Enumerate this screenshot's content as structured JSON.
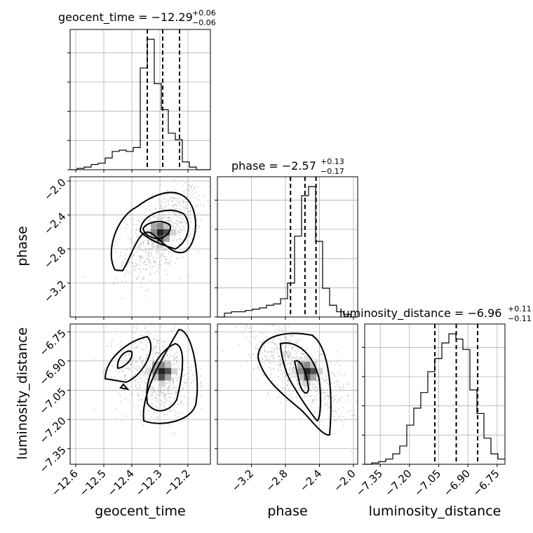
{
  "chart_data": {
    "type": "corner",
    "parameters": [
      {
        "name": "geocent_time",
        "title_prefix": "geocent_time = −12.29",
        "title_sup": "+0.06",
        "title_sub": "−0.06",
        "range": [
          -12.62,
          -12.12
        ],
        "ticks": [
          "−12.6",
          "−12.5",
          "−12.4",
          "−12.3",
          "−12.2"
        ],
        "tick_values": [
          -12.6,
          -12.5,
          -12.4,
          -12.3,
          -12.2
        ],
        "quantiles": [
          -12.345,
          -12.29,
          -12.23
        ],
        "hist": [
          0.0,
          0.01,
          0.02,
          0.04,
          0.05,
          0.09,
          0.14,
          0.15,
          0.14,
          0.17,
          0.78,
          1.0,
          0.66,
          0.46,
          0.28,
          0.23,
          0.06,
          0.02,
          0.0,
          0.0
        ]
      },
      {
        "name": "phase",
        "title_prefix": "phase = −2.57",
        "title_sup": "+0.13",
        "title_sub": "−0.17",
        "range": [
          -3.6,
          -1.95
        ],
        "ticks": [
          "−3.2",
          "−2.8",
          "−2.4",
          "−2.0"
        ],
        "tick_values": [
          -3.2,
          -2.8,
          -2.4,
          -2.0
        ],
        "quantiles": [
          -2.74,
          -2.57,
          -2.44
        ],
        "hist": [
          0.0,
          0.03,
          0.04,
          0.04,
          0.05,
          0.06,
          0.07,
          0.09,
          0.1,
          0.14,
          0.26,
          0.62,
          0.93,
          1.0,
          0.58,
          0.22,
          0.09,
          0.04,
          0.02,
          0.0
        ]
      },
      {
        "name": "luminosity_distance",
        "title_prefix": "luminosity_distance = −6.96",
        "title_sup": "+0.11",
        "title_sub": "−0.11",
        "range": [
          -7.43,
          -6.71
        ],
        "ticks": [
          "−7.35",
          "−7.20",
          "−7.05",
          "−6.90",
          "−6.75"
        ],
        "tick_values": [
          -7.35,
          -7.2,
          -7.05,
          -6.9,
          -6.75
        ],
        "quantiles": [
          -7.07,
          -6.96,
          -6.85
        ],
        "hist": [
          0.0,
          0.01,
          0.02,
          0.04,
          0.08,
          0.14,
          0.3,
          0.43,
          0.55,
          0.71,
          0.81,
          0.93,
          1.0,
          0.96,
          0.88,
          0.57,
          0.39,
          0.2,
          0.08,
          0.04
        ]
      }
    ],
    "grid": true,
    "contour_levels": 3
  }
}
